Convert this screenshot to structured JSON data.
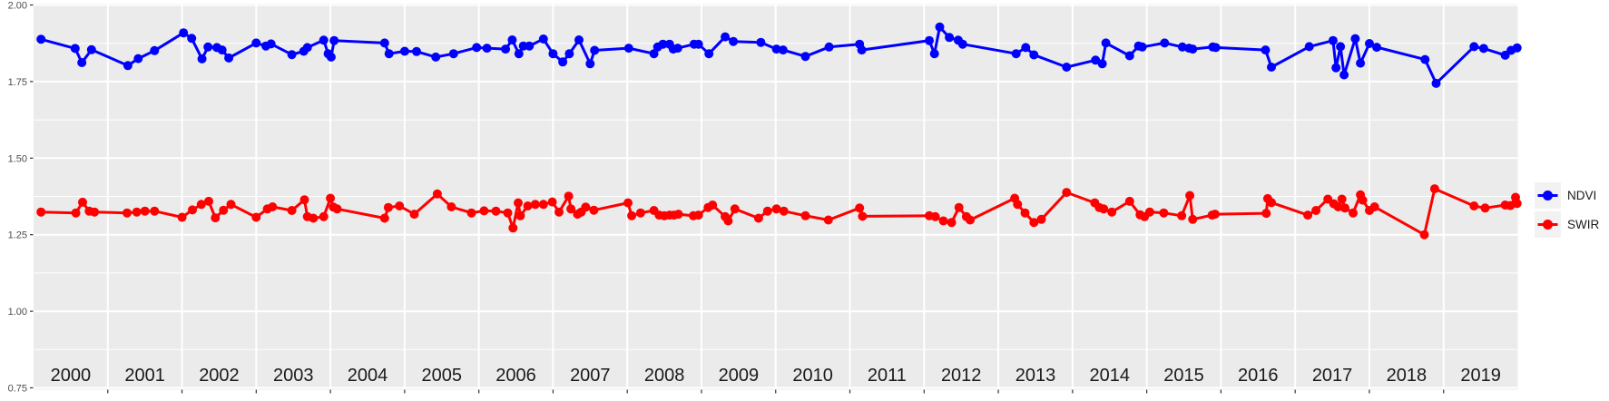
{
  "chart_data": {
    "type": "line",
    "title": "",
    "x_axis": {
      "label": "",
      "range": [
        2000,
        2020
      ],
      "year_labels": [
        "2000",
        "2001",
        "2002",
        "2003",
        "2004",
        "2005",
        "2006",
        "2007",
        "2008",
        "2009",
        "2010",
        "2011",
        "2012",
        "2013",
        "2014",
        "2015",
        "2016",
        "2017",
        "2018",
        "2019"
      ],
      "tick_boundary_years": [
        2001,
        2002,
        2003,
        2004,
        2005,
        2006,
        2007,
        2008,
        2009,
        2010,
        2011,
        2012,
        2013,
        2014,
        2015,
        2016,
        2017,
        2018,
        2019
      ]
    },
    "y_axis": {
      "label": "",
      "range": [
        0.75,
        2.0
      ],
      "tick_values": [
        0.75,
        1.0,
        1.25,
        1.5,
        1.75,
        2.0
      ],
      "tick_labels": [
        "0.75",
        "1.00",
        "1.25",
        "1.50",
        "1.75",
        "2.00"
      ],
      "minor_tick_values": [
        0.875,
        1.125,
        1.375,
        1.625,
        1.875
      ],
      "grid": true
    },
    "legend": {
      "position": "right",
      "items": [
        {
          "label": "NDVI",
          "color": "#0000FF"
        },
        {
          "label": "SWIR",
          "color": "#FF0000"
        }
      ]
    },
    "style": {
      "panel_bg": "#EBEBEB",
      "grid_color": "#FFFFFF",
      "axis_text_color": "#4D4D4D",
      "year_text_color": "#1A1A1A",
      "tick_color": "#333333",
      "legend_key_bg": "#F2F2F2"
    },
    "series": [
      {
        "name": "NDVI",
        "color": "#0000FF",
        "points": [
          [
            2000.1,
            1.888
          ],
          [
            2000.56,
            1.858
          ],
          [
            2000.65,
            1.812
          ],
          [
            2000.78,
            1.854
          ],
          [
            2001.27,
            1.802
          ],
          [
            2001.41,
            1.825
          ],
          [
            2001.63,
            1.851
          ],
          [
            2002.02,
            1.909
          ],
          [
            2002.13,
            1.891
          ],
          [
            2002.27,
            1.824
          ],
          [
            2002.35,
            1.863
          ],
          [
            2002.47,
            1.861
          ],
          [
            2002.54,
            1.853
          ],
          [
            2002.63,
            1.827
          ],
          [
            2003.0,
            1.876
          ],
          [
            2003.13,
            1.866
          ],
          [
            2003.2,
            1.873
          ],
          [
            2003.48,
            1.838
          ],
          [
            2003.64,
            1.849
          ],
          [
            2003.69,
            1.861
          ],
          [
            2003.91,
            1.885
          ],
          [
            2003.97,
            1.841
          ],
          [
            2004.01,
            1.83
          ],
          [
            2004.05,
            1.884
          ],
          [
            2004.73,
            1.876
          ],
          [
            2004.79,
            1.841
          ],
          [
            2005.0,
            1.849
          ],
          [
            2005.16,
            1.848
          ],
          [
            2005.42,
            1.83
          ],
          [
            2005.66,
            1.841
          ],
          [
            2005.97,
            1.861
          ],
          [
            2006.11,
            1.859
          ],
          [
            2006.36,
            1.856
          ],
          [
            2006.45,
            1.886
          ],
          [
            2006.54,
            1.841
          ],
          [
            2006.6,
            1.866
          ],
          [
            2006.68,
            1.866
          ],
          [
            2006.87,
            1.889
          ],
          [
            2007.0,
            1.841
          ],
          [
            2007.13,
            1.814
          ],
          [
            2007.22,
            1.841
          ],
          [
            2007.35,
            1.886
          ],
          [
            2007.5,
            1.808
          ],
          [
            2007.56,
            1.852
          ],
          [
            2008.02,
            1.859
          ],
          [
            2008.36,
            1.841
          ],
          [
            2008.41,
            1.863
          ],
          [
            2008.48,
            1.872
          ],
          [
            2008.57,
            1.872
          ],
          [
            2008.62,
            1.856
          ],
          [
            2008.68,
            1.859
          ],
          [
            2008.9,
            1.872
          ],
          [
            2008.96,
            1.872
          ],
          [
            2009.1,
            1.841
          ],
          [
            2009.32,
            1.896
          ],
          [
            2009.43,
            1.881
          ],
          [
            2009.8,
            1.878
          ],
          [
            2010.01,
            1.856
          ],
          [
            2010.1,
            1.853
          ],
          [
            2010.4,
            1.832
          ],
          [
            2010.72,
            1.863
          ],
          [
            2011.13,
            1.872
          ],
          [
            2011.16,
            1.853
          ],
          [
            2012.07,
            1.884
          ],
          [
            2012.14,
            1.841
          ],
          [
            2012.21,
            1.928
          ],
          [
            2012.34,
            1.894
          ],
          [
            2012.46,
            1.885
          ],
          [
            2012.52,
            1.872
          ],
          [
            2013.24,
            1.841
          ],
          [
            2013.37,
            1.861
          ],
          [
            2013.48,
            1.837
          ],
          [
            2013.92,
            1.797
          ],
          [
            2014.31,
            1.82
          ],
          [
            2014.4,
            1.808
          ],
          [
            2014.45,
            1.876
          ],
          [
            2014.77,
            1.834
          ],
          [
            2014.89,
            1.866
          ],
          [
            2014.94,
            1.863
          ],
          [
            2015.24,
            1.876
          ],
          [
            2015.48,
            1.863
          ],
          [
            2015.57,
            1.859
          ],
          [
            2015.62,
            1.856
          ],
          [
            2015.89,
            1.863
          ],
          [
            2015.93,
            1.861
          ],
          [
            2016.6,
            1.853
          ],
          [
            2016.68,
            1.797
          ],
          [
            2017.19,
            1.864
          ],
          [
            2017.51,
            1.884
          ],
          [
            2017.55,
            1.795
          ],
          [
            2017.61,
            1.864
          ],
          [
            2017.66,
            1.772
          ],
          [
            2017.81,
            1.89
          ],
          [
            2017.88,
            1.81
          ],
          [
            2018.0,
            1.874
          ],
          [
            2018.1,
            1.862
          ],
          [
            2018.75,
            1.822
          ],
          [
            2018.9,
            1.744
          ],
          [
            2019.41,
            1.864
          ],
          [
            2019.54,
            1.858
          ],
          [
            2019.83,
            1.836
          ],
          [
            2019.91,
            1.852
          ],
          [
            2019.99,
            1.86
          ]
        ]
      },
      {
        "name": "SWIR",
        "color": "#FF0000",
        "points": [
          [
            2000.1,
            1.324
          ],
          [
            2000.57,
            1.321
          ],
          [
            2000.66,
            1.356
          ],
          [
            2000.75,
            1.327
          ],
          [
            2000.82,
            1.324
          ],
          [
            2001.26,
            1.321
          ],
          [
            2001.39,
            1.324
          ],
          [
            2001.5,
            1.327
          ],
          [
            2001.63,
            1.327
          ],
          [
            2002.0,
            1.307
          ],
          [
            2002.14,
            1.331
          ],
          [
            2002.26,
            1.349
          ],
          [
            2002.36,
            1.359
          ],
          [
            2002.45,
            1.305
          ],
          [
            2002.56,
            1.33
          ],
          [
            2002.66,
            1.349
          ],
          [
            2003.0,
            1.307
          ],
          [
            2003.15,
            1.334
          ],
          [
            2003.22,
            1.341
          ],
          [
            2003.48,
            1.329
          ],
          [
            2003.65,
            1.364
          ],
          [
            2003.69,
            1.309
          ],
          [
            2003.77,
            1.304
          ],
          [
            2003.91,
            1.309
          ],
          [
            2004.0,
            1.369
          ],
          [
            2004.04,
            1.34
          ],
          [
            2004.09,
            1.334
          ],
          [
            2004.73,
            1.304
          ],
          [
            2004.78,
            1.339
          ],
          [
            2004.93,
            1.344
          ],
          [
            2005.13,
            1.317
          ],
          [
            2005.44,
            1.383
          ],
          [
            2005.63,
            1.341
          ],
          [
            2005.9,
            1.321
          ],
          [
            2006.07,
            1.328
          ],
          [
            2006.23,
            1.327
          ],
          [
            2006.39,
            1.321
          ],
          [
            2006.46,
            1.272
          ],
          [
            2006.53,
            1.354
          ],
          [
            2006.56,
            1.312
          ],
          [
            2006.66,
            1.344
          ],
          [
            2006.76,
            1.349
          ],
          [
            2006.87,
            1.349
          ],
          [
            2006.99,
            1.357
          ],
          [
            2007.08,
            1.324
          ],
          [
            2007.21,
            1.376
          ],
          [
            2007.24,
            1.334
          ],
          [
            2007.33,
            1.317
          ],
          [
            2007.38,
            1.324
          ],
          [
            2007.44,
            1.34
          ],
          [
            2007.55,
            1.33
          ],
          [
            2008.01,
            1.354
          ],
          [
            2008.06,
            1.312
          ],
          [
            2008.18,
            1.321
          ],
          [
            2008.36,
            1.329
          ],
          [
            2008.43,
            1.314
          ],
          [
            2008.5,
            1.312
          ],
          [
            2008.57,
            1.314
          ],
          [
            2008.63,
            1.314
          ],
          [
            2008.69,
            1.317
          ],
          [
            2008.89,
            1.312
          ],
          [
            2008.96,
            1.314
          ],
          [
            2009.09,
            1.339
          ],
          [
            2009.15,
            1.347
          ],
          [
            2009.32,
            1.309
          ],
          [
            2009.36,
            1.295
          ],
          [
            2009.45,
            1.334
          ],
          [
            2009.77,
            1.304
          ],
          [
            2009.89,
            1.327
          ],
          [
            2010.01,
            1.334
          ],
          [
            2010.11,
            1.327
          ],
          [
            2010.4,
            1.312
          ],
          [
            2010.71,
            1.298
          ],
          [
            2011.13,
            1.337
          ],
          [
            2011.17,
            1.31
          ],
          [
            2012.07,
            1.312
          ],
          [
            2012.15,
            1.309
          ],
          [
            2012.26,
            1.295
          ],
          [
            2012.37,
            1.29
          ],
          [
            2012.47,
            1.339
          ],
          [
            2012.57,
            1.309
          ],
          [
            2012.62,
            1.298
          ],
          [
            2013.22,
            1.369
          ],
          [
            2013.26,
            1.349
          ],
          [
            2013.36,
            1.321
          ],
          [
            2013.48,
            1.29
          ],
          [
            2013.58,
            1.3
          ],
          [
            2013.92,
            1.388
          ],
          [
            2014.3,
            1.354
          ],
          [
            2014.36,
            1.339
          ],
          [
            2014.42,
            1.334
          ],
          [
            2014.53,
            1.324
          ],
          [
            2014.77,
            1.359
          ],
          [
            2014.91,
            1.315
          ],
          [
            2014.97,
            1.309
          ],
          [
            2015.04,
            1.324
          ],
          [
            2015.23,
            1.321
          ],
          [
            2015.47,
            1.312
          ],
          [
            2015.58,
            1.378
          ],
          [
            2015.62,
            1.3
          ],
          [
            2015.88,
            1.314
          ],
          [
            2015.92,
            1.317
          ],
          [
            2016.61,
            1.32
          ],
          [
            2016.63,
            1.368
          ],
          [
            2016.68,
            1.355
          ],
          [
            2017.17,
            1.314
          ],
          [
            2017.28,
            1.329
          ],
          [
            2017.44,
            1.366
          ],
          [
            2017.52,
            1.351
          ],
          [
            2017.58,
            1.341
          ],
          [
            2017.63,
            1.366
          ],
          [
            2017.67,
            1.337
          ],
          [
            2017.78,
            1.321
          ],
          [
            2017.88,
            1.38
          ],
          [
            2017.91,
            1.363
          ],
          [
            2018.0,
            1.329
          ],
          [
            2018.07,
            1.341
          ],
          [
            2018.74,
            1.25
          ],
          [
            2018.88,
            1.4
          ],
          [
            2019.41,
            1.344
          ],
          [
            2019.56,
            1.337
          ],
          [
            2019.83,
            1.347
          ],
          [
            2019.9,
            1.345
          ],
          [
            2019.97,
            1.372
          ],
          [
            2019.99,
            1.352
          ]
        ]
      }
    ]
  }
}
